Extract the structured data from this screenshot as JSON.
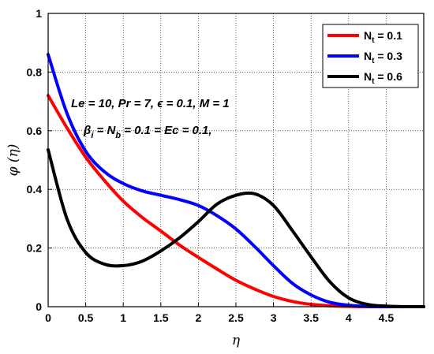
{
  "chart_data": {
    "type": "line",
    "xlabel": "η",
    "ylabel": "φ (η)",
    "xlim": [
      0,
      5
    ],
    "ylim": [
      0,
      1
    ],
    "x_ticks": [
      "0",
      "0.5",
      "1",
      "1.5",
      "2",
      "2.5",
      "3",
      "3.5",
      "4",
      "4.5"
    ],
    "y_ticks": [
      "0",
      "0.2",
      "0.4",
      "0.6",
      "0.8",
      "1"
    ],
    "grid": "dotted",
    "legend_position": "top-right",
    "annotations": [
      "Le = 10, Pr = 7,  ϵ = 0.1, M = 1",
      "β_i = N_b = 0.1 = Ec = 0.1,"
    ],
    "x": [
      0,
      0.25,
      0.5,
      0.75,
      1,
      1.25,
      1.5,
      1.75,
      2,
      2.25,
      2.5,
      2.75,
      3,
      3.25,
      3.5,
      3.75,
      4,
      4.25,
      4.5,
      4.75,
      5
    ],
    "series": [
      {
        "name": "N_t = 0.1",
        "name_main": "N",
        "name_sub": "t",
        "name_rest": " = 0.1",
        "color": "#ff0000",
        "values": [
          0.72,
          0.61,
          0.51,
          0.43,
          0.36,
          0.305,
          0.258,
          0.21,
          0.168,
          0.128,
          0.09,
          0.06,
          0.035,
          0.018,
          0.008,
          0.003,
          0.001,
          0.0,
          0.0,
          0.0,
          0.0
        ]
      },
      {
        "name": "N_t = 0.3",
        "name_main": "N",
        "name_sub": "t",
        "name_rest": " = 0.3",
        "color": "#0000ff",
        "values": [
          0.86,
          0.66,
          0.53,
          0.46,
          0.42,
          0.395,
          0.38,
          0.365,
          0.345,
          0.31,
          0.265,
          0.205,
          0.14,
          0.08,
          0.04,
          0.015,
          0.005,
          0.001,
          0.0,
          0.0,
          0.0
        ]
      },
      {
        "name": "N_t = 0.6",
        "name_main": "N",
        "name_sub": "t",
        "name_rest": " = 0.6",
        "color": "#000000",
        "values": [
          0.535,
          0.3,
          0.185,
          0.145,
          0.14,
          0.155,
          0.19,
          0.235,
          0.29,
          0.35,
          0.38,
          0.385,
          0.345,
          0.26,
          0.17,
          0.085,
          0.03,
          0.008,
          0.002,
          0.0,
          0.0
        ]
      }
    ]
  }
}
